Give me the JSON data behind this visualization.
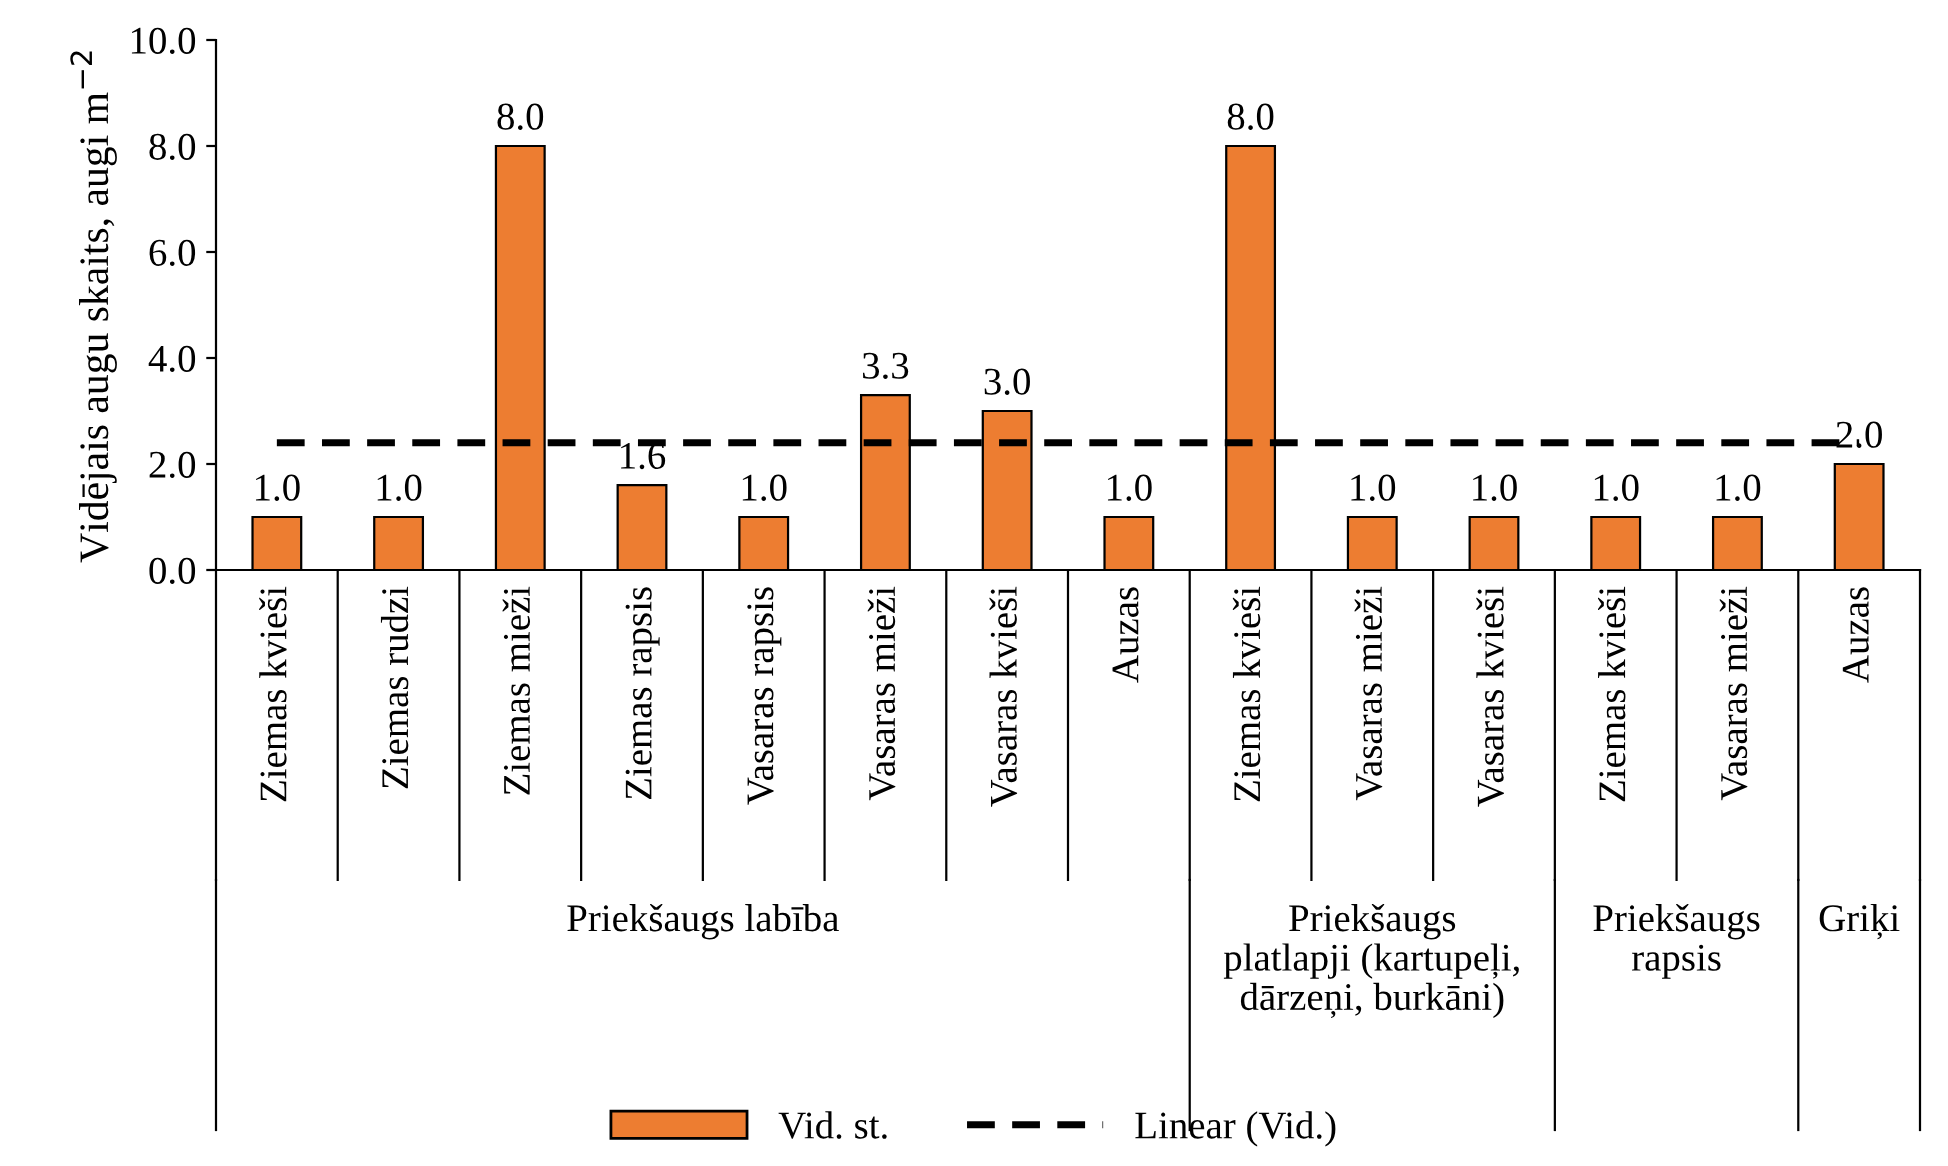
{
  "chart_data": {
    "type": "bar",
    "ylabel": "Vidējais augu skaits, augi m$^{−2}$",
    "categories": [
      "Ziemas kvieši",
      "Ziemas rudzi",
      "Ziemas mieži",
      "Ziemas rapsis",
      "Vasaras rapsis",
      "Vasaras mieži",
      "Vasaras kvieši",
      "Auzas",
      "Ziemas kvieši",
      "Vasaras mieži",
      "Vasaras kvieši",
      "Ziemas kvieši",
      "Vasaras mieži",
      "Auzas"
    ],
    "series": [
      {
        "name": "Vid. st.",
        "color": "#ed7d31",
        "values": [
          1.0,
          1.0,
          8.0,
          1.6,
          1.0,
          3.3,
          3.0,
          1.0,
          8.0,
          1.0,
          1.0,
          1.0,
          1.0,
          2.0
        ],
        "value_labels": [
          "1.0",
          "1.0",
          "8.0",
          "1.6",
          "1.0",
          "3.3",
          "3.0",
          "1.0",
          "8.0",
          "1.0",
          "1.0",
          "1.0",
          "1.0",
          "2.0"
        ]
      },
      {
        "name": "Linear (Vid.)",
        "type": "line",
        "color": "#000000",
        "line_style": "dashed",
        "values": [
          2.4,
          2.4,
          2.4,
          2.4,
          2.4,
          2.4,
          2.4,
          2.4,
          2.4,
          2.4,
          2.4,
          2.4,
          2.4,
          2.4
        ]
      }
    ],
    "annotations": [
      "Priekšaugs labība",
      "Priekšaugs\nplatlapji (kartupeļi,\ndārzeņi, burkāni)",
      "Priekšaugs\nrapsis",
      "Griķi"
    ],
    "ylim": [
      0,
      10
    ],
    "yticks": [
      {
        "value": 0,
        "label": "0.0"
      },
      {
        "value": 2,
        "label": "2.0"
      },
      {
        "value": 4,
        "label": "4.0"
      },
      {
        "value": 6,
        "label": "6.0"
      },
      {
        "value": 8,
        "label": "8.0"
      },
      {
        "value": 10,
        "label": "10.0"
      }
    ],
    "grid": false,
    "legend": "bottom"
  }
}
